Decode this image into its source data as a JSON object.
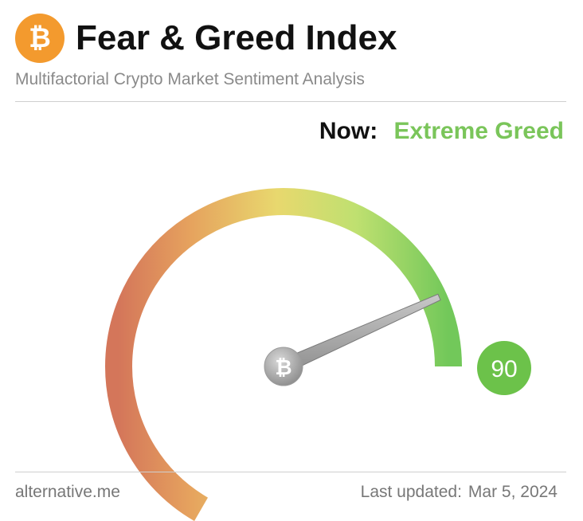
{
  "header": {
    "logo_icon": "bitcoin-icon",
    "logo_symbol": "₿",
    "title": "Fear & Greed Index",
    "subtitle": "Multifactorial Crypto Market Sentiment Analysis"
  },
  "status": {
    "label": "Now:",
    "value": "Extreme Greed",
    "color": "#7ac55a"
  },
  "gauge": {
    "value": "90",
    "min": 0,
    "max": 100,
    "badge_color": "#6cc24a",
    "hub_icon": "bitcoin-icon",
    "hub_symbol": "₿"
  },
  "footer": {
    "source": "alternative.me",
    "updated_label": "Last updated:",
    "updated_date": "Mar 5, 2024"
  }
}
